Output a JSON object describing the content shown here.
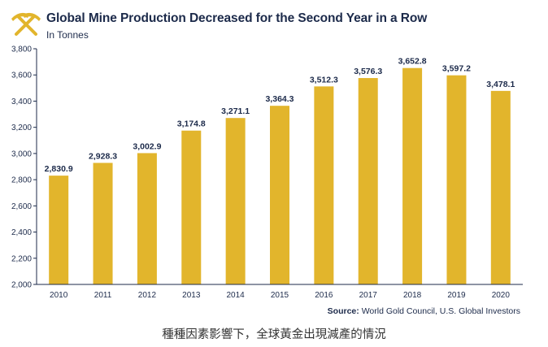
{
  "header": {
    "title": "Global Mine Production Decreased for the Second Year in a Row",
    "subtitle": "In Tonnes"
  },
  "source": {
    "label": "Source:",
    "text": "World Gold Council, U.S. Global Investors"
  },
  "caption": "種種因素影響下，全球黃金出現減產的情況",
  "colors": {
    "bar": "#e2b52c",
    "text": "#1c2a4a",
    "axis": "#1c2a4a",
    "logo": "#e2b52c"
  },
  "icons": {
    "logo": "crossed-pickaxes-icon"
  },
  "chart_data": {
    "type": "bar",
    "title": "Global Mine Production Decreased for the Second Year in a Row",
    "subtitle": "In Tonnes",
    "xlabel": "",
    "ylabel": "",
    "categories": [
      "2010",
      "2011",
      "2012",
      "2013",
      "2014",
      "2015",
      "2016",
      "2017",
      "2018",
      "2019",
      "2020"
    ],
    "values": [
      2830.9,
      2928.3,
      3002.9,
      3174.8,
      3271.1,
      3364.3,
      3512.3,
      3576.3,
      3652.8,
      3597.2,
      3478.1
    ],
    "data_labels": [
      "2,830.9",
      "2,928.3",
      "3,002.9",
      "3,174.8",
      "3,271.1",
      "3,364.3",
      "3,512.3",
      "3,576.3",
      "3,652.8",
      "3,597.2",
      "3,478.1"
    ],
    "ylim": [
      2000,
      3800
    ],
    "yticks": [
      2000,
      2200,
      2400,
      2600,
      2800,
      3000,
      3200,
      3400,
      3600,
      3800
    ],
    "ytick_labels": [
      "2,000",
      "2,200",
      "2,400",
      "2,600",
      "2,800",
      "3,000",
      "3,200",
      "3,400",
      "3,600",
      "3,800"
    ],
    "grid": false,
    "legend": "none"
  }
}
